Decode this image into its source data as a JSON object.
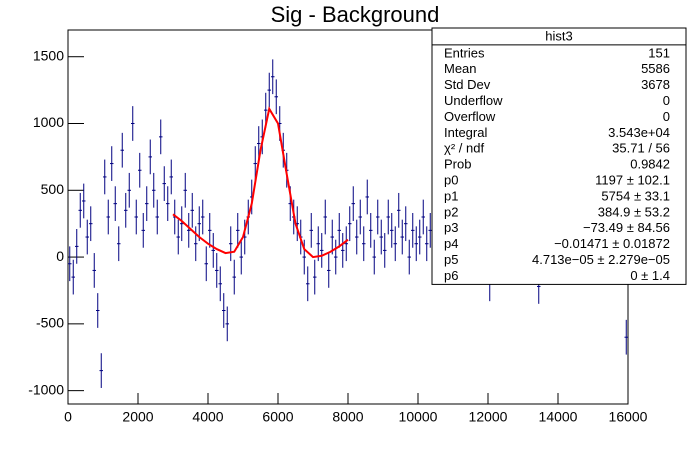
{
  "chart_data": {
    "type": "errorbar-histogram",
    "title": "Sig - Background",
    "x": [
      50,
      150,
      250,
      350,
      450,
      550,
      650,
      750,
      850,
      950,
      1050,
      1150,
      1250,
      1350,
      1450,
      1550,
      1650,
      1750,
      1850,
      1950,
      2050,
      2150,
      2250,
      2350,
      2450,
      2550,
      2650,
      2750,
      2850,
      2950,
      3050,
      3150,
      3250,
      3350,
      3450,
      3550,
      3650,
      3750,
      3850,
      3950,
      4050,
      4150,
      4250,
      4350,
      4450,
      4550,
      4650,
      4750,
      4850,
      4950,
      5050,
      5150,
      5250,
      5350,
      5450,
      5550,
      5650,
      5750,
      5850,
      5950,
      6050,
      6150,
      6250,
      6350,
      6450,
      6550,
      6650,
      6750,
      6850,
      6950,
      7050,
      7150,
      7250,
      7350,
      7450,
      7550,
      7650,
      7750,
      7850,
      7950,
      8050,
      8150,
      8250,
      8350,
      8450,
      8550,
      8650,
      8750,
      8850,
      8950,
      9050,
      9150,
      9250,
      9350,
      9450,
      9550,
      9650,
      9750,
      9850,
      9950,
      10050,
      10150,
      10250,
      10350,
      10450,
      12050,
      13450,
      15950
    ],
    "values": [
      -50,
      -150,
      80,
      350,
      420,
      150,
      250,
      -100,
      -400,
      -850,
      600,
      300,
      700,
      400,
      100,
      800,
      350,
      500,
      1000,
      300,
      650,
      200,
      400,
      750,
      500,
      300,
      900,
      550,
      400,
      600,
      300,
      150,
      250,
      500,
      200,
      350,
      100,
      250,
      300,
      -50,
      200,
      50,
      -100,
      -200,
      -400,
      -500,
      100,
      -150,
      200,
      0,
      150,
      300,
      450,
      700,
      850,
      900,
      1100,
      1250,
      1350,
      1200,
      1000,
      800,
      650,
      400,
      300,
      250,
      150,
      0,
      -200,
      200,
      -150,
      100,
      50,
      300,
      -100,
      150,
      0,
      200,
      50,
      100,
      250,
      400,
      150,
      300,
      100,
      450,
      200,
      0,
      300,
      150,
      50,
      300,
      200,
      100,
      350,
      150,
      250,
      0,
      200,
      100,
      150,
      300,
      100,
      200,
      50,
      -200,
      -220,
      -600
    ],
    "error": 130,
    "bin_width": 100,
    "color": "#000080",
    "fit": {
      "color": "#ff0000",
      "x": [
        3000,
        3250,
        3500,
        3750,
        4000,
        4250,
        4500,
        4750,
        5000,
        5250,
        5500,
        5750,
        6000,
        6250,
        6500,
        6750,
        7000,
        7250,
        7500,
        7750,
        8000
      ],
      "values": [
        320,
        270,
        210,
        150,
        100,
        60,
        30,
        40,
        150,
        400,
        800,
        1110,
        1000,
        620,
        250,
        60,
        0,
        10,
        40,
        80,
        130
      ]
    },
    "xlim": [
      0,
      16000
    ],
    "xticks": [
      0,
      2000,
      4000,
      6000,
      8000,
      10000,
      12000,
      14000,
      16000
    ],
    "ylim": [
      -1100,
      1700
    ],
    "yticks": [
      -1000,
      -500,
      0,
      500,
      1000,
      1500
    ]
  },
  "stats": {
    "title": "hist3",
    "rows": [
      [
        "Entries",
        "151"
      ],
      [
        "Mean",
        "5586"
      ],
      [
        "Std Dev",
        "3678"
      ],
      [
        "Underflow",
        "0"
      ],
      [
        "Overflow",
        "0"
      ],
      [
        "Integral",
        "3.543e+04"
      ],
      [
        "χ² / ndf",
        "35.71 / 56"
      ],
      [
        "Prob",
        "0.9842"
      ],
      [
        "p0",
        "1197 ± 102.1"
      ],
      [
        "p1",
        "5754 ± 33.1"
      ],
      [
        "p2",
        "384.9 ± 53.2"
      ],
      [
        "p3",
        "−73.49 ± 84.56"
      ],
      [
        "p4",
        "−0.01471 ± 0.01872"
      ],
      [
        "p5",
        "4.713e−05 ± 2.279e−05"
      ],
      [
        "p6",
        "0 ± 1.4"
      ]
    ]
  }
}
